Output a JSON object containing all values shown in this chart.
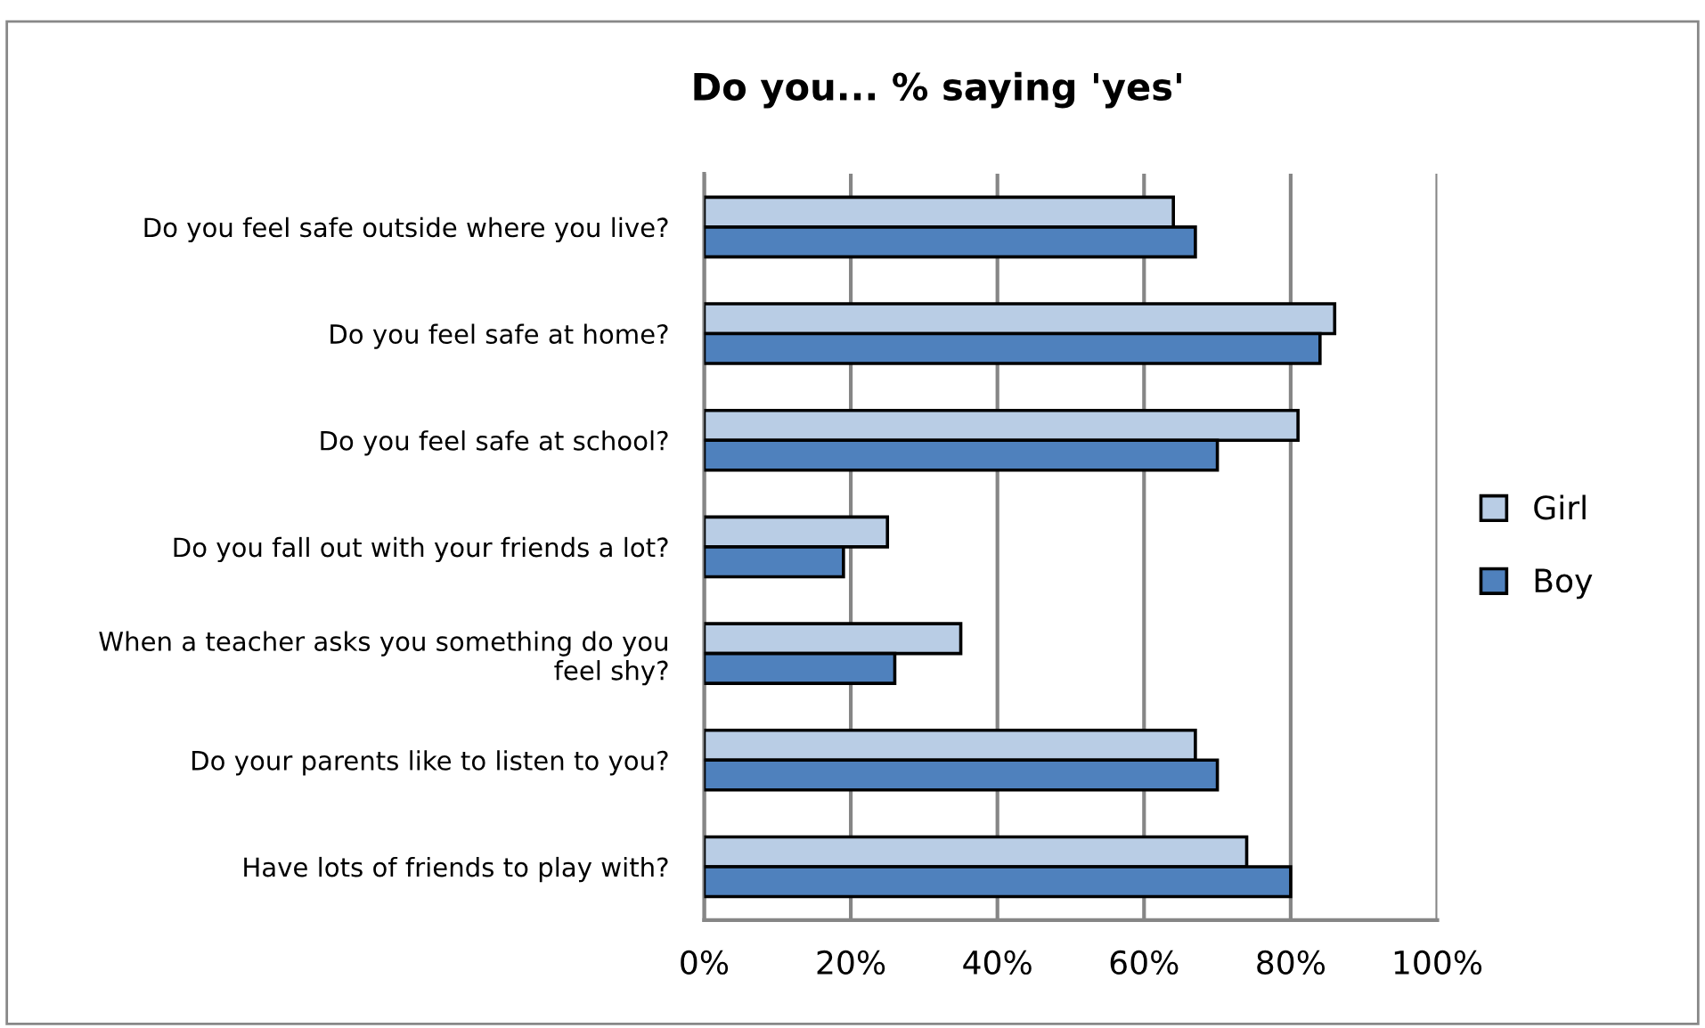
{
  "chart_data": {
    "type": "bar",
    "orientation": "horizontal",
    "title": "Do you... % saying 'yes'",
    "categories": [
      "Do you feel safe outside where you live?",
      "Do you feel safe at home?",
      "Do you feel safe at school?",
      "Do you fall out with your friends a lot?",
      "When a teacher asks you something do you feel shy?",
      "Do your parents like to listen to you?",
      "Have lots of friends to play with?"
    ],
    "series": [
      {
        "name": "Girl",
        "color": "#b9cde5",
        "values": [
          64,
          86,
          81,
          25,
          35,
          67,
          74
        ]
      },
      {
        "name": "Boy",
        "color": "#4f81bd",
        "values": [
          67,
          84,
          70,
          19,
          26,
          70,
          80
        ]
      }
    ],
    "xlim": [
      0,
      100
    ],
    "xticks": [
      {
        "value": 0,
        "label": "0%"
      },
      {
        "value": 20,
        "label": "20%"
      },
      {
        "value": 40,
        "label": "40%"
      },
      {
        "value": 60,
        "label": "60%"
      },
      {
        "value": 80,
        "label": "80%"
      },
      {
        "value": 100,
        "label": "100%"
      }
    ],
    "grid": "x",
    "legend": "right"
  }
}
